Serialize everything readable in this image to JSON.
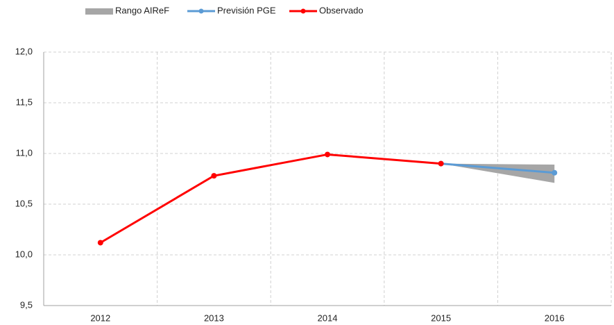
{
  "chart_data": {
    "type": "line",
    "categories": [
      "2012",
      "2013",
      "2014",
      "2015",
      "2016"
    ],
    "series": [
      {
        "name": "Rango AIReF",
        "color": "#a6a6a6",
        "kind": "band",
        "low": [
          null,
          null,
          null,
          10.9,
          10.71
        ],
        "high": [
          null,
          null,
          null,
          10.9,
          10.89
        ]
      },
      {
        "name": "Previsión PGE",
        "color": "#5b9bd5",
        "values": [
          null,
          null,
          null,
          10.9,
          10.81
        ]
      },
      {
        "name": "Observado",
        "color": "#ff0000",
        "values": [
          10.12,
          10.78,
          10.99,
          10.9,
          null
        ]
      }
    ],
    "ylim": [
      9.5,
      12.0
    ],
    "yticks": [
      {
        "value": 9.5,
        "label": "9,5"
      },
      {
        "value": 10.0,
        "label": "10,0"
      },
      {
        "value": 10.5,
        "label": "10,5"
      },
      {
        "value": 11.0,
        "label": "11,0"
      },
      {
        "value": 11.5,
        "label": "11,5"
      },
      {
        "value": 12.0,
        "label": "12,0"
      }
    ],
    "grid": true,
    "legend": "top"
  }
}
